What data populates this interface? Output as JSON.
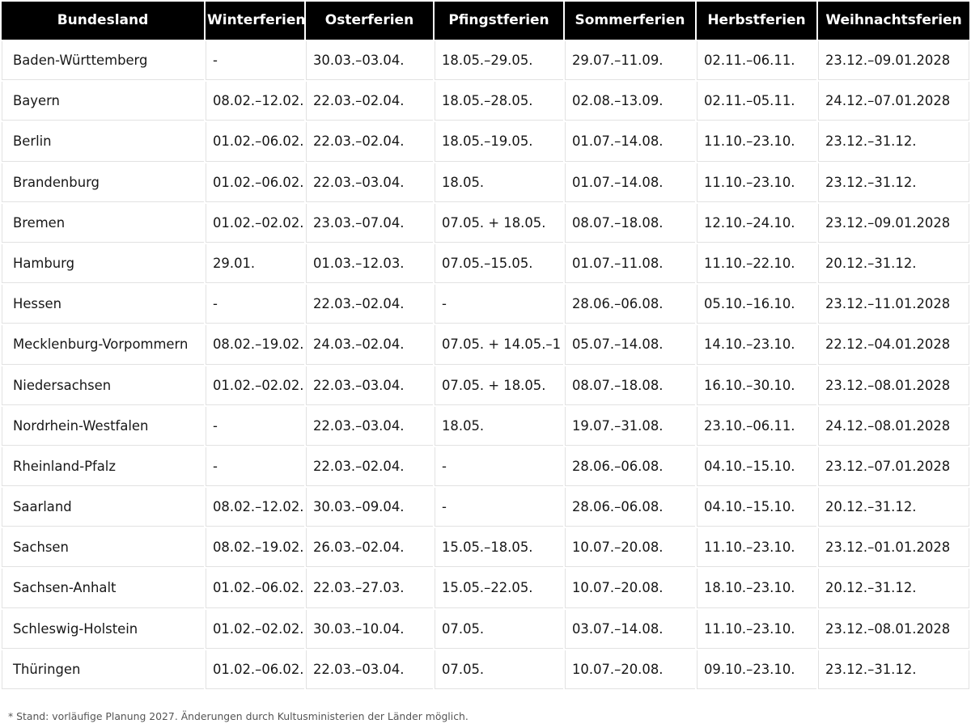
{
  "table": {
    "columns": [
      "Bundesland",
      "Winterferien",
      "Osterferien",
      "Pfingstferien",
      "Sommerferien",
      "Herbstferien",
      "Weihnachtsferien"
    ],
    "rows": [
      {
        "cells": [
          "Baden-Württemberg",
          "-",
          "30.03.–03.04.",
          "18.05.–29.05.",
          "29.07.–11.09.",
          "02.11.–06.11.",
          "23.12.–09.01.2028"
        ]
      },
      {
        "cells": [
          "Bayern",
          "08.02.–12.02.",
          "22.03.–02.04.",
          "18.05.–28.05.",
          "02.08.–13.09.",
          "02.11.–05.11.",
          "24.12.–07.01.2028"
        ]
      },
      {
        "cells": [
          "Berlin",
          "01.02.–06.02.",
          "22.03.–02.04.",
          "18.05.–19.05.",
          "01.07.–14.08.",
          "11.10.–23.10.",
          "23.12.–31.12."
        ]
      },
      {
        "cells": [
          "Brandenburg",
          "01.02.–06.02.",
          "22.03.–03.04.",
          "18.05.",
          "01.07.–14.08.",
          "11.10.–23.10.",
          "23.12.–31.12."
        ]
      },
      {
        "cells": [
          "Bremen",
          "01.02.–02.02.",
          "23.03.–07.04.",
          "07.05. + 18.05.",
          "08.07.–18.08.",
          "12.10.–24.10.",
          "23.12.–09.01.2028"
        ]
      },
      {
        "cells": [
          "Hamburg",
          "29.01.",
          "01.03.–12.03.",
          "07.05.–15.05.",
          "01.07.–11.08.",
          "11.10.–22.10.",
          "20.12.–31.12."
        ]
      },
      {
        "cells": [
          "Hessen",
          "-",
          "22.03.–02.04.",
          "-",
          "28.06.–06.08.",
          "05.10.–16.10.",
          "23.12.–11.01.2028"
        ]
      },
      {
        "cells": [
          "Mecklenburg-Vorpommern",
          "08.02.–19.02.",
          "24.03.–02.04.",
          "07.05. + 14.05.–1",
          "05.07.–14.08.",
          "14.10.–23.10.",
          "22.12.–04.01.2028"
        ]
      },
      {
        "cells": [
          "Niedersachsen",
          "01.02.–02.02.",
          "22.03.–03.04.",
          "07.05. + 18.05.",
          "08.07.–18.08.",
          "16.10.–30.10.",
          "23.12.–08.01.2028"
        ]
      },
      {
        "cells": [
          "Nordrhein-Westfalen",
          "-",
          "22.03.–03.04.",
          "18.05.",
          "19.07.–31.08.",
          "23.10.–06.11.",
          "24.12.–08.01.2028"
        ]
      },
      {
        "cells": [
          "Rheinland-Pfalz",
          "-",
          "22.03.–02.04.",
          "-",
          "28.06.–06.08.",
          "04.10.–15.10.",
          "23.12.–07.01.2028"
        ]
      },
      {
        "cells": [
          "Saarland",
          "08.02.–12.02.",
          "30.03.–09.04.",
          "-",
          "28.06.–06.08.",
          "04.10.–15.10.",
          "20.12.–31.12."
        ]
      },
      {
        "cells": [
          "Sachsen",
          "08.02.–19.02.",
          "26.03.–02.04.",
          "15.05.–18.05.",
          "10.07.–20.08.",
          "11.10.–23.10.",
          "23.12.–01.01.2028"
        ]
      },
      {
        "cells": [
          "Sachsen-Anhalt",
          "01.02.–06.02.",
          "22.03.–27.03.",
          "15.05.–22.05.",
          "10.07.–20.08.",
          "18.10.–23.10.",
          "20.12.–31.12."
        ]
      },
      {
        "cells": [
          "Schleswig-Holstein",
          "01.02.–02.02.",
          "30.03.–10.04.",
          "07.05.",
          "03.07.–14.08.",
          "11.10.–23.10.",
          "23.12.–08.01.2028"
        ]
      },
      {
        "cells": [
          "Thüringen",
          "01.02.–06.02.",
          "22.03.–03.04.",
          "07.05.",
          "10.07.–20.08.",
          "09.10.–23.10.",
          "23.12.–31.12."
        ]
      }
    ]
  },
  "footnote": "* Stand: vorläufige Planung 2027. Änderungen durch Kultusministerien der Länder möglich.",
  "colors": {
    "header_bg": "#000000",
    "header_text": "#ffffff",
    "body_text": "#171717",
    "border": "#e2e2e2",
    "footnote_text": "#555555"
  }
}
